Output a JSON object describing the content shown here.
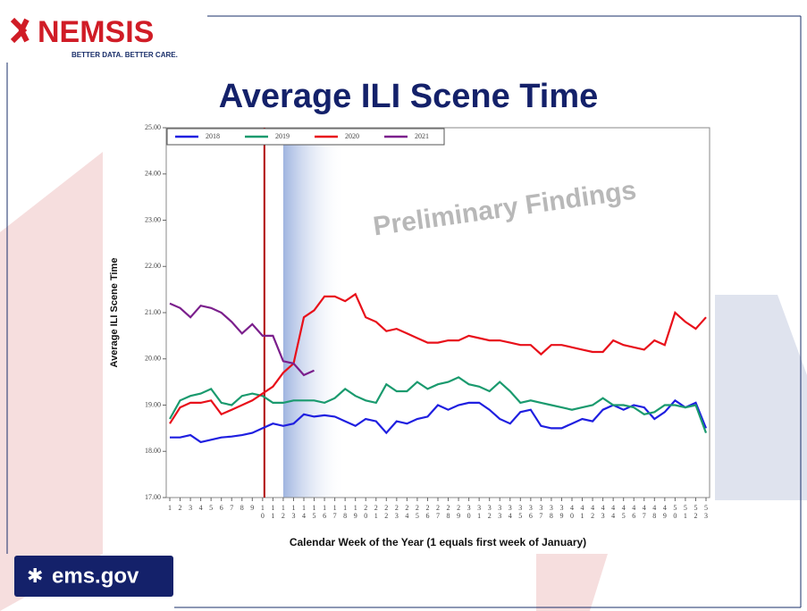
{
  "logo": {
    "name": "NEMSIS",
    "tagline": "BETTER DATA. BETTER CARE."
  },
  "footer": {
    "site": "ems.gov"
  },
  "chart_data": {
    "type": "line",
    "title": "Average ILI Scene Time",
    "annotation": "Preliminary Findings",
    "x_label": "Calendar Week of the Year (1 equals first week of January)",
    "y_label": "Average ILI Scene Time",
    "x": [
      1,
      2,
      3,
      4,
      5,
      6,
      7,
      8,
      9,
      10,
      11,
      12,
      13,
      14,
      15,
      16,
      17,
      18,
      19,
      20,
      21,
      22,
      23,
      24,
      25,
      26,
      27,
      28,
      29,
      30,
      31,
      32,
      33,
      34,
      35,
      36,
      37,
      38,
      39,
      40,
      41,
      42,
      43,
      44,
      45,
      46,
      47,
      48,
      49,
      50,
      51,
      52,
      53
    ],
    "xlim": [
      1,
      53
    ],
    "ylim": [
      17,
      25
    ],
    "yticks": [
      {
        "value": 17,
        "label": "17.00"
      },
      {
        "value": 18,
        "label": "18.00"
      },
      {
        "value": 19,
        "label": "19.00"
      },
      {
        "value": 20,
        "label": "20.00"
      },
      {
        "value": 21,
        "label": "21.00"
      },
      {
        "value": 22,
        "label": "22.00"
      },
      {
        "value": 23,
        "label": "23.00"
      },
      {
        "value": 24,
        "label": "24.00"
      },
      {
        "value": 25,
        "label": "25.00"
      }
    ],
    "reference_line_x": 10,
    "shaded_x_range": [
      12,
      18
    ],
    "series": [
      {
        "name": "2018",
        "color": "#1f1fe0",
        "values": [
          18.3,
          18.3,
          18.35,
          18.2,
          18.25,
          18.3,
          18.32,
          18.35,
          18.4,
          18.5,
          18.6,
          18.55,
          18.6,
          18.8,
          18.75,
          18.78,
          18.75,
          18.65,
          18.55,
          18.7,
          18.65,
          18.4,
          18.65,
          18.6,
          18.7,
          18.75,
          19.0,
          18.9,
          19.0,
          19.05,
          19.05,
          18.9,
          18.7,
          18.6,
          18.85,
          18.9,
          18.55,
          18.5,
          18.5,
          18.6,
          18.7,
          18.65,
          18.9,
          19.0,
          18.9,
          19.0,
          18.95,
          18.7,
          18.85,
          19.1,
          18.95,
          19.05,
          18.5
        ]
      },
      {
        "name": "2019",
        "color": "#1a9a6e",
        "values": [
          18.7,
          19.1,
          19.2,
          19.25,
          19.35,
          19.05,
          19.0,
          19.2,
          19.25,
          19.2,
          19.05,
          19.05,
          19.1,
          19.1,
          19.1,
          19.05,
          19.15,
          19.35,
          19.2,
          19.1,
          19.05,
          19.45,
          19.3,
          19.3,
          19.5,
          19.35,
          19.45,
          19.5,
          19.6,
          19.45,
          19.4,
          19.3,
          19.5,
          19.3,
          19.05,
          19.1,
          19.05,
          19.0,
          18.95,
          18.9,
          18.95,
          19.0,
          19.15,
          19.0,
          19.0,
          18.95,
          18.8,
          18.85,
          19.0,
          19.0,
          18.95,
          19.0,
          18.4
        ]
      },
      {
        "name": "2020",
        "color": "#e8101a",
        "values": [
          18.6,
          18.95,
          19.05,
          19.05,
          19.1,
          18.8,
          18.9,
          19.0,
          19.1,
          19.25,
          19.4,
          19.7,
          19.9,
          20.9,
          21.05,
          21.35,
          21.35,
          21.25,
          21.4,
          20.9,
          20.8,
          20.6,
          20.65,
          20.55,
          20.45,
          20.35,
          20.35,
          20.4,
          20.4,
          20.5,
          20.45,
          20.4,
          20.4,
          20.35,
          20.3,
          20.3,
          20.1,
          20.3,
          20.3,
          20.25,
          20.2,
          20.15,
          20.15,
          20.4,
          20.3,
          20.25,
          20.2,
          20.4,
          20.3,
          21.0,
          20.8,
          20.65,
          20.9
        ]
      },
      {
        "name": "2021",
        "color": "#7b1f8c",
        "values": [
          21.2,
          21.1,
          20.9,
          21.15,
          21.1,
          21.0,
          20.8,
          20.55,
          20.75,
          20.5,
          20.5,
          19.95,
          19.9,
          19.65,
          19.75,
          null,
          null,
          null,
          null,
          null,
          null,
          null,
          null,
          null,
          null,
          null,
          null,
          null,
          null,
          null,
          null,
          null,
          null,
          null,
          null,
          null,
          null,
          null,
          null,
          null,
          null,
          null,
          null,
          null,
          null,
          null,
          null,
          null,
          null,
          null,
          null,
          null,
          null
        ]
      }
    ]
  }
}
